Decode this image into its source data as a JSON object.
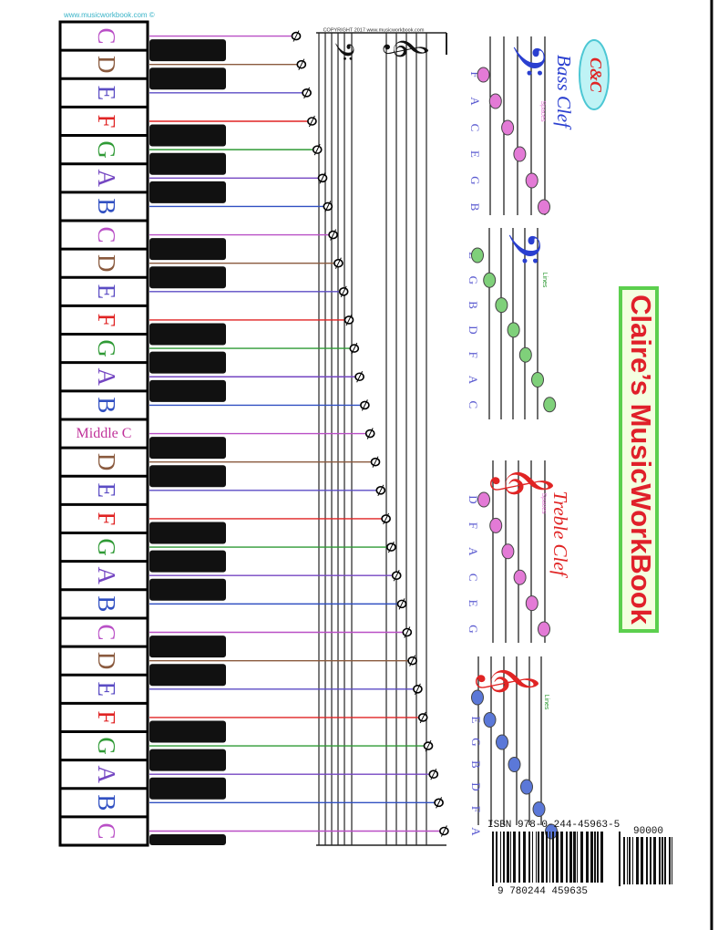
{
  "website": "www.musicworkbook.com ©",
  "copyright": "COPYRIGHT 2017 www.musicworkbook.com",
  "logo": "C&C",
  "clefs": {
    "bass": "𝄢",
    "treble": "𝄞"
  },
  "keyboard": {
    "keys": [
      "C",
      "D",
      "E",
      "F",
      "G",
      "A",
      "B",
      "C",
      "D",
      "E",
      "F",
      "G",
      "A",
      "B",
      "Middle C",
      "D",
      "E",
      "F",
      "G",
      "A",
      "B",
      "C",
      "D",
      "E",
      "F",
      "G",
      "A",
      "B",
      "C"
    ],
    "colors": {
      "C": "#b94fc6",
      "D": "#8a5a3e",
      "E": "#5b4cc4",
      "F": "#e02424",
      "G": "#2f9a35",
      "A": "#7446c2",
      "B": "#3150c2"
    }
  },
  "bass_clef": {
    "title": "Bass Clef",
    "spaces": {
      "label": "Spaces",
      "notes": [
        "F",
        "A",
        "C",
        "E",
        "G",
        "B"
      ],
      "color": "#e37ad6"
    },
    "lines": {
      "label": "Lines",
      "notes": [
        "E",
        "G",
        "B",
        "D",
        "F",
        "A",
        "C"
      ],
      "color": "#7fd07a"
    }
  },
  "treble_clef": {
    "title": "Treble Clef",
    "spaces": {
      "label": "Spaces",
      "notes": [
        "D",
        "F",
        "A",
        "C",
        "E",
        "G"
      ],
      "color": "#e37ad6"
    },
    "lines": {
      "label": "Lines",
      "notes": [
        "C",
        "E",
        "G",
        "B",
        "D",
        "F",
        "A"
      ],
      "color": "#5b78d8"
    }
  },
  "book_title": "Claire’s MusicWorkBook",
  "barcode": {
    "isbn": "ISBN 978-0-244-45963-5",
    "price_code": "90000",
    "digits": "9 780244 459635"
  }
}
